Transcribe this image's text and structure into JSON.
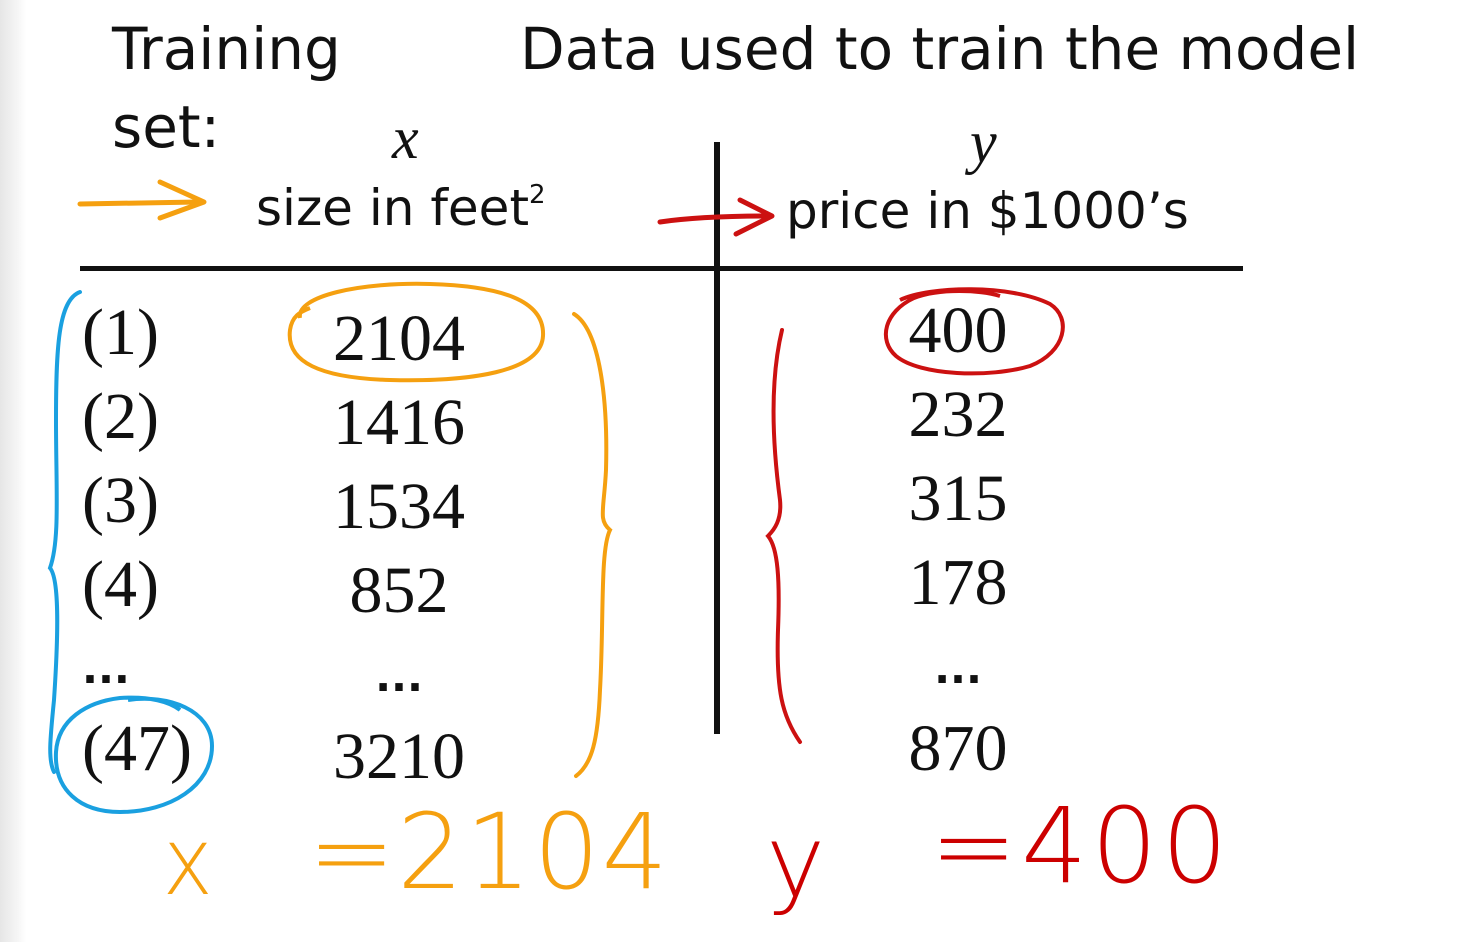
{
  "title": {
    "line1": "Training",
    "line2": "set:"
  },
  "description": "Data used to train the model",
  "columns": {
    "x_symbol": "x",
    "y_symbol": "y",
    "x_label": "size in feet",
    "x_label_sup": "2",
    "y_label": "price in $1000’s"
  },
  "rows": [
    {
      "index": "(1)",
      "x": "2104",
      "y": "400"
    },
    {
      "index": "(2)",
      "x": "1416",
      "y": "232"
    },
    {
      "index": "(3)",
      "x": "1534",
      "y": "315"
    },
    {
      "index": "(4)",
      "x": "852",
      "y": "178"
    },
    {
      "index": "...",
      "x": "...",
      "y": "..."
    },
    {
      "index": "(47)",
      "x": "3210",
      "y": "870"
    }
  ],
  "annotations": {
    "x_letter": "x",
    "x_value": "=2104",
    "y_letter": "y",
    "y_value": "=400"
  },
  "colors": {
    "orange": "#f5a010",
    "red": "#cc0000",
    "blue": "#1aa0e0",
    "ink": "#111111"
  }
}
